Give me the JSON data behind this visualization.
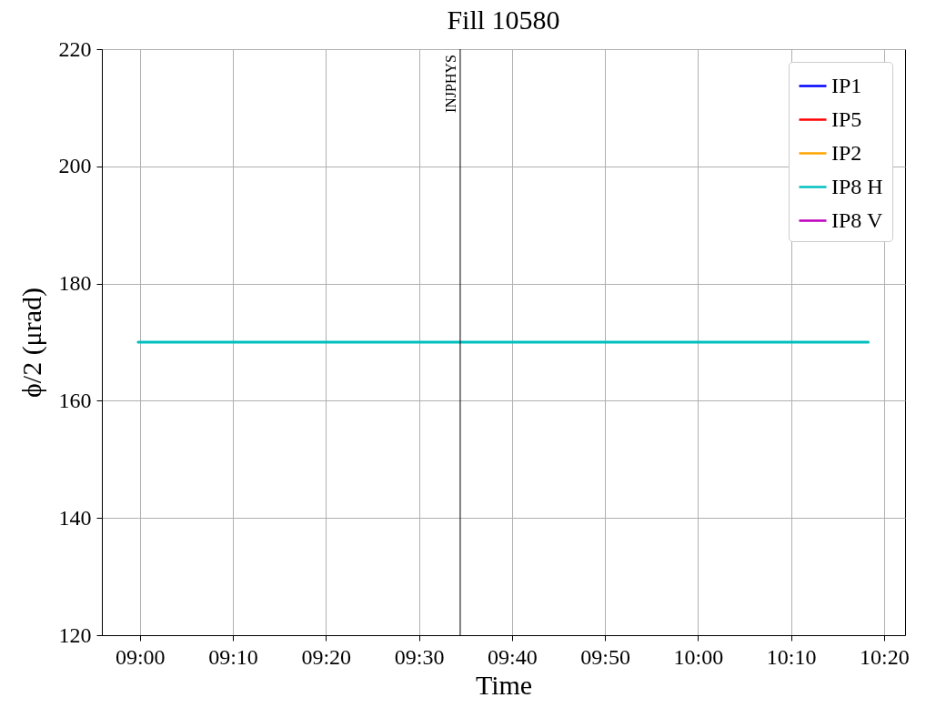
{
  "chart_data": {
    "type": "line",
    "title": "Fill 10580",
    "xlabel": "Time",
    "ylabel": "ϕ/2 (μrad)",
    "x": [
      8.997,
      10.305
    ],
    "series": [
      {
        "name": "IP1",
        "color": "#0000ff",
        "values": [
          null,
          null
        ]
      },
      {
        "name": "IP5",
        "color": "#ff0000",
        "values": [
          null,
          null
        ]
      },
      {
        "name": "IP2",
        "color": "#ffa500",
        "values": [
          null,
          null
        ]
      },
      {
        "name": "IP8 H",
        "color": "#00bfbf",
        "values": [
          170,
          170
        ]
      },
      {
        "name": "IP8 V",
        "color": "#bf00bf",
        "values": [
          null,
          null
        ]
      }
    ],
    "xlim": [
      8.932,
      10.371
    ],
    "xticks": [
      {
        "value": 9,
        "label": "09:00"
      },
      {
        "value": 9.1667,
        "label": "09:10"
      },
      {
        "value": 9.3333,
        "label": "09:20"
      },
      {
        "value": 9.5,
        "label": "09:30"
      },
      {
        "value": 9.6667,
        "label": "09:40"
      },
      {
        "value": 9.8333,
        "label": "09:50"
      },
      {
        "value": 10,
        "label": "10:00"
      },
      {
        "value": 10.1667,
        "label": "10:10"
      },
      {
        "value": 10.3333,
        "label": "10:20"
      }
    ],
    "ylim": [
      120,
      220
    ],
    "yticks": [
      120,
      140,
      160,
      180,
      200,
      220
    ],
    "ref_lines": [
      {
        "axis": "x",
        "value": 9.574,
        "label": "INJPHYS",
        "color": "#000000"
      }
    ],
    "grid": true,
    "legend": "top right",
    "line_style": "solid"
  }
}
